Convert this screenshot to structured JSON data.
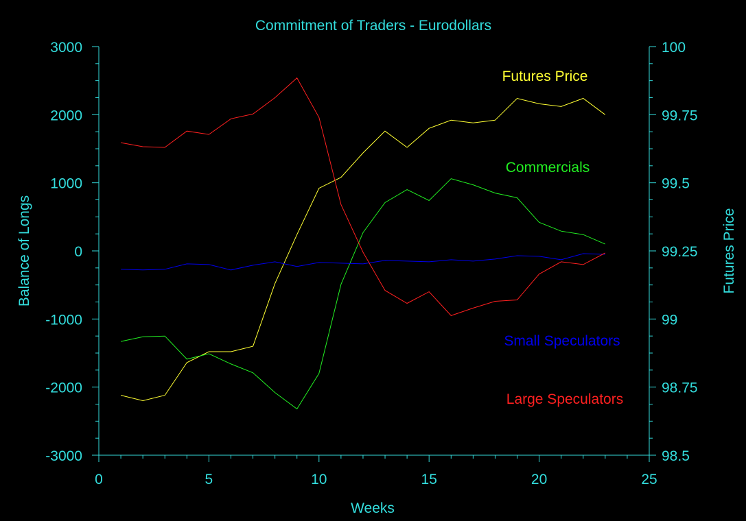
{
  "chart_data": {
    "type": "line",
    "title": "Commitment of Traders - Eurodollars",
    "xlabel": "Weeks",
    "ylabel": "Balance of Longs",
    "y2label": "Futures Price",
    "xlim": [
      0,
      25
    ],
    "ylim": [
      -3000,
      3000
    ],
    "y2lim": [
      98.5,
      100
    ],
    "x_ticks": [
      "0",
      "5",
      "10",
      "15",
      "20",
      "25"
    ],
    "y_ticks": [
      "-3000",
      "-2000",
      "-1000",
      "0",
      "1000",
      "2000",
      "3000"
    ],
    "y2_ticks": [
      "98.5",
      "98.75",
      "99",
      "99.25",
      "99.5",
      "99.75",
      "100"
    ],
    "x": [
      1,
      2,
      3,
      4,
      5,
      6,
      7,
      8,
      9,
      10,
      11,
      12,
      13,
      14,
      15,
      16,
      17,
      18,
      19,
      20,
      21,
      22,
      23
    ],
    "series": [
      {
        "name": "Futures Price",
        "axis": "right",
        "color": "#ffff33",
        "values": [
          98.72,
          98.7,
          98.72,
          98.84,
          98.88,
          98.88,
          98.9,
          99.13,
          99.31,
          99.48,
          99.52,
          99.61,
          99.69,
          99.63,
          99.7,
          99.73,
          99.72,
          99.73,
          99.81,
          99.79,
          99.78,
          99.81,
          99.75
        ]
      },
      {
        "name": "Commercials",
        "axis": "left",
        "color": "#22ee22",
        "values": [
          -1330,
          -1260,
          -1250,
          -1590,
          -1510,
          -1660,
          -1790,
          -2080,
          -2320,
          -1800,
          -490,
          270,
          710,
          900,
          740,
          1060,
          970,
          850,
          780,
          420,
          290,
          240,
          100
        ]
      },
      {
        "name": "Small Speculators",
        "axis": "left",
        "color": "#0000ee",
        "values": [
          -270,
          -280,
          -270,
          -190,
          -200,
          -280,
          -210,
          -160,
          -230,
          -170,
          -180,
          -190,
          -140,
          -150,
          -160,
          -130,
          -150,
          -120,
          -70,
          -80,
          -130,
          -40,
          -50
        ]
      },
      {
        "name": "Large Speculators",
        "axis": "left",
        "color": "#ff2020",
        "values": [
          1590,
          1530,
          1520,
          1760,
          1710,
          1940,
          2010,
          2250,
          2540,
          1960,
          680,
          -20,
          -580,
          -770,
          -600,
          -950,
          -840,
          -740,
          -720,
          -340,
          -160,
          -200,
          -30
        ]
      }
    ],
    "legend_placement": "right, beside lines",
    "grid": false
  },
  "colors": {
    "background": "#000000",
    "axis": "#33dddd",
    "text": "#33dddd"
  }
}
